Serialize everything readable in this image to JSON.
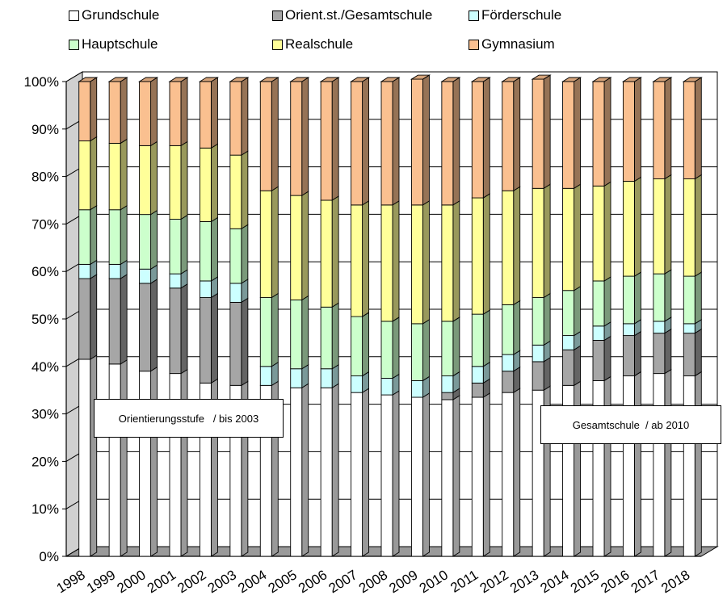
{
  "chart_data": {
    "type": "bar",
    "stacked": true,
    "percent": true,
    "three_d": true,
    "categories": [
      "1998",
      "1999",
      "2000",
      "2001",
      "2002",
      "2003",
      "2004",
      "2005",
      "2006",
      "2007",
      "2008",
      "2009",
      "2010",
      "2011",
      "2012",
      "2013",
      "2014",
      "2015",
      "2016",
      "2017",
      "2018"
    ],
    "yticks": [
      "0%",
      "10%",
      "20%",
      "30%",
      "40%",
      "50%",
      "60%",
      "70%",
      "80%",
      "90%",
      "100%"
    ],
    "ylim": [
      0,
      100
    ],
    "grid": true,
    "legend_position": "top",
    "series": [
      {
        "name": "Grundschule",
        "color": "#ffffff",
        "values": [
          41.5,
          40.5,
          39,
          38.5,
          36.5,
          36,
          36,
          35.5,
          35.5,
          34.5,
          34,
          33.5,
          33,
          33.5,
          34.5,
          35,
          36,
          37,
          38,
          38.5,
          38
        ]
      },
      {
        "name": "Orient.st./Gesamtschule",
        "color": "#a6a6a6",
        "values": [
          17,
          18,
          18.5,
          18,
          18,
          17.5,
          0,
          0,
          0,
          0,
          0,
          0,
          1.5,
          3,
          4.5,
          6,
          7.5,
          8.5,
          8.5,
          8.5,
          9
        ]
      },
      {
        "name": "Förderschule",
        "color": "#ccffff",
        "values": [
          3,
          3,
          3,
          3,
          3.5,
          4,
          4,
          4,
          4,
          3.5,
          3.5,
          3.5,
          3.5,
          3.5,
          3.5,
          3.5,
          3,
          3,
          2.5,
          2.5,
          2
        ]
      },
      {
        "name": "Hauptschule",
        "color": "#ccffcc",
        "values": [
          11.5,
          11.5,
          11.5,
          11.5,
          12.5,
          11.5,
          14.5,
          14.5,
          13,
          12.5,
          12,
          12,
          11.5,
          11,
          10.5,
          10,
          9.5,
          9.5,
          10,
          10,
          10
        ]
      },
      {
        "name": "Realschule",
        "color": "#ffff99",
        "values": [
          14.5,
          14,
          14.5,
          15.5,
          15.5,
          15.5,
          22.5,
          22,
          22.5,
          23.5,
          24.5,
          25,
          24.5,
          24.5,
          24,
          23,
          21.5,
          20,
          20,
          20,
          20.5
        ]
      },
      {
        "name": "Gymnasium",
        "color": "#fac090",
        "values": [
          12.5,
          13,
          13.5,
          13.5,
          14,
          15.5,
          23,
          24,
          25,
          26,
          26,
          26.5,
          26,
          24.5,
          23,
          23,
          22.5,
          22,
          21,
          20.5,
          20.5
        ]
      }
    ],
    "annotations": [
      "Orientierungsstufe   / bis 2003",
      "Gesamtschule  / ab 2010"
    ]
  }
}
